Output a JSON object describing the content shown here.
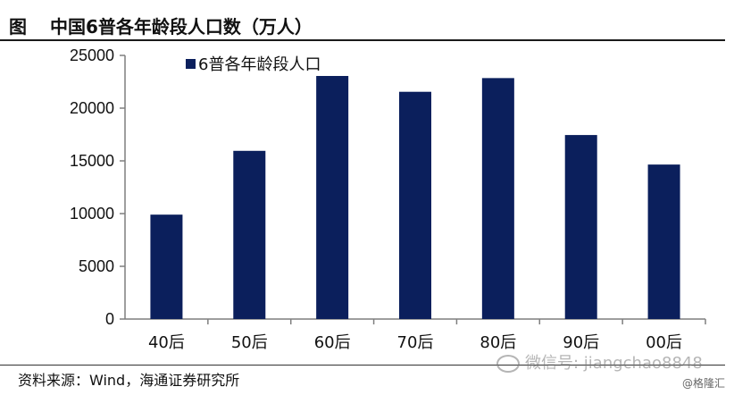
{
  "figure": {
    "label": "图",
    "title": "中国6普各年龄段人口数（万人）"
  },
  "source": "资料来源：Wind，海通证券研究所",
  "watermark": "微信号: jiangchao8848",
  "brand": "@格隆汇",
  "colors": {
    "bar": "#0b1f5c",
    "axis": "#7f7f7f"
  },
  "chart_data": {
    "type": "bar",
    "categories": [
      "40后",
      "50后",
      "60后",
      "70后",
      "80后",
      "90后",
      "00后"
    ],
    "series": [
      {
        "name": "6普各年龄段人口",
        "values": [
          9900,
          15950,
          23050,
          21550,
          22850,
          17450,
          14650
        ]
      }
    ],
    "ylim": [
      0,
      25000
    ],
    "yticks": [
      0,
      5000,
      10000,
      15000,
      20000,
      25000
    ],
    "legend": "top-left",
    "grid": false
  }
}
